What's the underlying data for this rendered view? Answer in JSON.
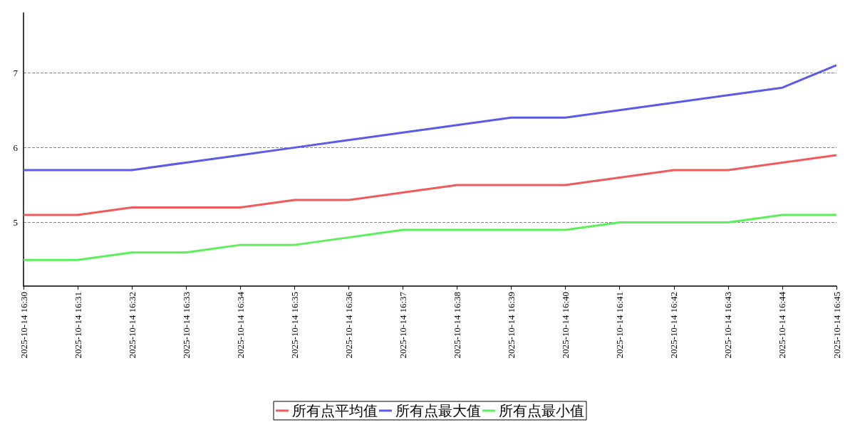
{
  "chart_data": {
    "type": "line",
    "categories": [
      "2025-10-14 16:30",
      "2025-10-14 16:31",
      "2025-10-14 16:32",
      "2025-10-14 16:33",
      "2025-10-14 16:34",
      "2025-10-14 16:35",
      "2025-10-14 16:36",
      "2025-10-14 16:37",
      "2025-10-14 16:38",
      "2025-10-14 16:39",
      "2025-10-14 16:40",
      "2025-10-14 16:41",
      "2025-10-14 16:42",
      "2025-10-14 16:43",
      "2025-10-14 16:44",
      "2025-10-14 16:45"
    ],
    "series": [
      {
        "name": "所有点平均值",
        "color": "#f05a5a",
        "values": [
          5.1,
          5.1,
          5.2,
          5.2,
          5.2,
          5.3,
          5.3,
          5.4,
          5.5,
          5.5,
          5.5,
          5.6,
          5.7,
          5.7,
          5.8,
          5.9
        ]
      },
      {
        "name": "所有点最大值",
        "color": "#5a5aeb",
        "values": [
          5.7,
          5.7,
          5.7,
          5.8,
          5.9,
          6.0,
          6.1,
          6.2,
          6.3,
          6.4,
          6.4,
          6.5,
          6.6,
          6.7,
          6.8,
          7.1
        ]
      },
      {
        "name": "所有点最小值",
        "color": "#5af05a",
        "values": [
          4.5,
          4.5,
          4.6,
          4.6,
          4.7,
          4.7,
          4.8,
          4.9,
          4.9,
          4.9,
          4.9,
          5.0,
          5.0,
          5.0,
          5.1,
          5.1
        ]
      }
    ],
    "ylim": [
      4.15,
      7.8
    ],
    "yticks": [
      5,
      6,
      7
    ],
    "grid": "y",
    "legend": "bottom",
    "marker": "none",
    "line_style": "solid"
  }
}
